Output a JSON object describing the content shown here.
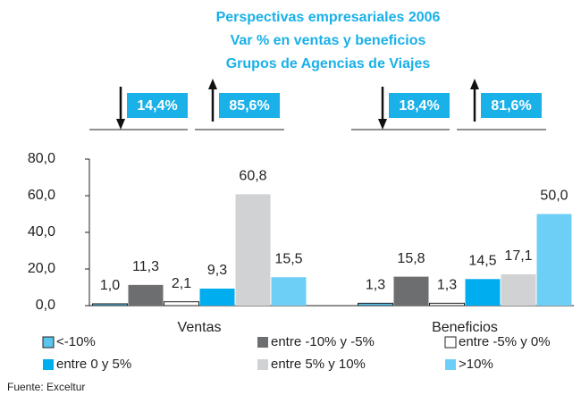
{
  "chart_data": {
    "type": "bar",
    "title": [
      "Perspectivas empresariales 2006",
      "Var % en ventas y beneficios",
      "Grupos de Agencias de Viajes"
    ],
    "annotations": [
      {
        "text": "14,4%",
        "direction": "down"
      },
      {
        "text": "85,6%",
        "direction": "up"
      },
      {
        "text": "18,4%",
        "direction": "down"
      },
      {
        "text": "81,6%",
        "direction": "up"
      }
    ],
    "categories": [
      "Ventas",
      "Beneficios"
    ],
    "series": [
      {
        "name": "<-10%",
        "color": "#5bc5ee",
        "outline": "#222222",
        "values": [
          1.0,
          1.3
        ],
        "value_labels": [
          "1,0",
          "1,3"
        ]
      },
      {
        "name": "entre -10% y -5%",
        "color": "#6d6e70",
        "values": [
          11.3,
          15.8
        ],
        "value_labels": [
          "11,3",
          "15,8"
        ]
      },
      {
        "name": "entre -5% y 0%",
        "color": "#ffffff",
        "outline": "#222222",
        "values": [
          2.1,
          1.3
        ],
        "value_labels": [
          "2,1",
          "1,3"
        ]
      },
      {
        "name": "entre 0 y 5%",
        "color": "#00aeef",
        "values": [
          9.3,
          14.5
        ],
        "value_labels": [
          "9,3",
          "14,5"
        ]
      },
      {
        "name": "entre 5% y 10%",
        "color": "#d1d2d4",
        "values": [
          60.8,
          17.1
        ],
        "value_labels": [
          "60,8",
          "17,1"
        ]
      },
      {
        "name": ">10%",
        "color": "#6dcff6",
        "values": [
          15.5,
          50.0
        ],
        "value_labels": [
          "15,5",
          "50,0"
        ]
      }
    ],
    "ylim": [
      0,
      80
    ],
    "yticks": [
      {
        "value": 0,
        "label": "0,0"
      },
      {
        "value": 20,
        "label": "20,0"
      },
      {
        "value": 40,
        "label": "40,0"
      },
      {
        "value": 60,
        "label": "60,0"
      },
      {
        "value": 80,
        "label": "80,0"
      }
    ],
    "title_color": "#1ab0e8",
    "source": "Fuente: Exceltur"
  }
}
